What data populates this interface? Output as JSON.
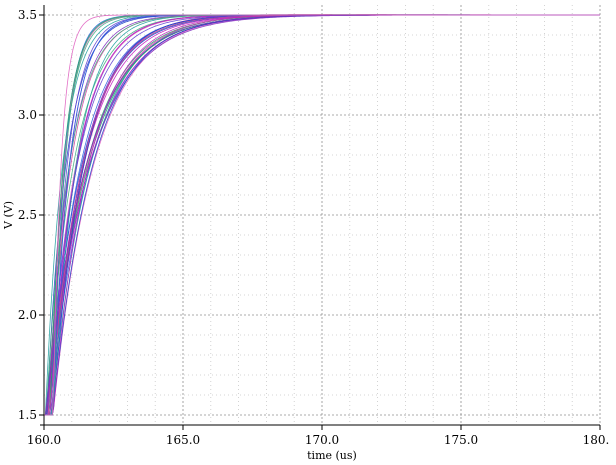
{
  "chart_data": {
    "type": "line",
    "title": "",
    "xlabel": "time (us)",
    "ylabel": "V (V)",
    "xlim": [
      160.0,
      180.0
    ],
    "ylim": [
      1.45,
      3.55
    ],
    "x_ticks": [
      160.0,
      165.0,
      170.0,
      175.0,
      180.0
    ],
    "x_tick_labels": [
      "160.0",
      "165.0",
      "170.0",
      "175.0",
      "180."
    ],
    "y_ticks": [
      1.5,
      2.0,
      2.5,
      3.0,
      3.5
    ],
    "y_tick_labels": [
      "1.5",
      "2.0",
      "2.5",
      "3.0",
      "3.5"
    ],
    "x_minor_step": 1.0,
    "y_minor_step": 0.1,
    "grid": true,
    "legend": "none",
    "series_colors": [
      "#1f9e6e",
      "#2040c8",
      "#c020c0",
      "#20a0a0",
      "#6040d0",
      "#d040a0",
      "#3060e0",
      "#40b080",
      "#8030c0",
      "#e060c0"
    ],
    "series_family": {
      "start_time": 160.0,
      "initial_value": 1.5,
      "final_value": 3.5,
      "count": 40,
      "delay_range": [
        0.05,
        0.35
      ],
      "time_constant_range": [
        0.25,
        1.6
      ]
    }
  }
}
